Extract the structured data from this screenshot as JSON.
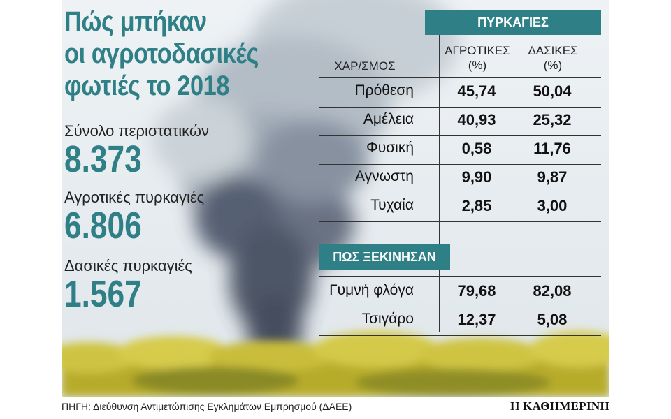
{
  "title_lines": [
    "Πώς μπήκαν",
    "οι αγροτοδασικές",
    "φωτιές το 2018"
  ],
  "stats": [
    {
      "label": "Σύνολο περιστατικών",
      "value": "8.373"
    },
    {
      "label": "Αγροτικές πυρκαγιές",
      "value": "6.806"
    },
    {
      "label": "Δασικές πυρκαγιές",
      "value": "1.567"
    }
  ],
  "colors": {
    "accent": "#2f7f86",
    "smoke": "#3c4658",
    "foliage": "#c9bd3a"
  },
  "chart_data": {
    "type": "table",
    "group_header": "ΠΥΡΚΑΓΙΕΣ",
    "row_header": "ΧΑΡ/ΣΜΟΣ",
    "columns": [
      {
        "line1": "ΑΓΡΟΤΙΚΕΣ",
        "line2": "(%)"
      },
      {
        "line1": "ΔΑΣΙΚΕΣ",
        "line2": "(%)"
      }
    ],
    "section1": {
      "rows": [
        {
          "category": "Πρόθεση",
          "agricultural": "45,74",
          "forest": "50,04"
        },
        {
          "category": "Αμέλεια",
          "agricultural": "40,93",
          "forest": "25,32"
        },
        {
          "category": "Φυσική",
          "agricultural": "0,58",
          "forest": "11,76"
        },
        {
          "category": "Αγνωστη",
          "agricultural": "9,90",
          "forest": "9,87"
        },
        {
          "category": "Τυχαία",
          "agricultural": "2,85",
          "forest": "3,00"
        }
      ]
    },
    "section2": {
      "header": "ΠΩΣ ΞΕΚΙΝΗΣΑΝ",
      "rows": [
        {
          "category": "Γυμνή φλόγα",
          "agricultural": "79,68",
          "forest": "82,08"
        },
        {
          "category": "Τσιγάρο",
          "agricultural": "12,37",
          "forest": "5,08"
        }
      ]
    }
  },
  "footer": {
    "source": "ΠΗΓΗ: Διεύθυνση Αντιμετώπισης Εγκλημάτων Εμπρησμού (ΔΑΕΕ)",
    "brand": "Η ΚΑΘΗΜΕΡΙΝΗ"
  }
}
